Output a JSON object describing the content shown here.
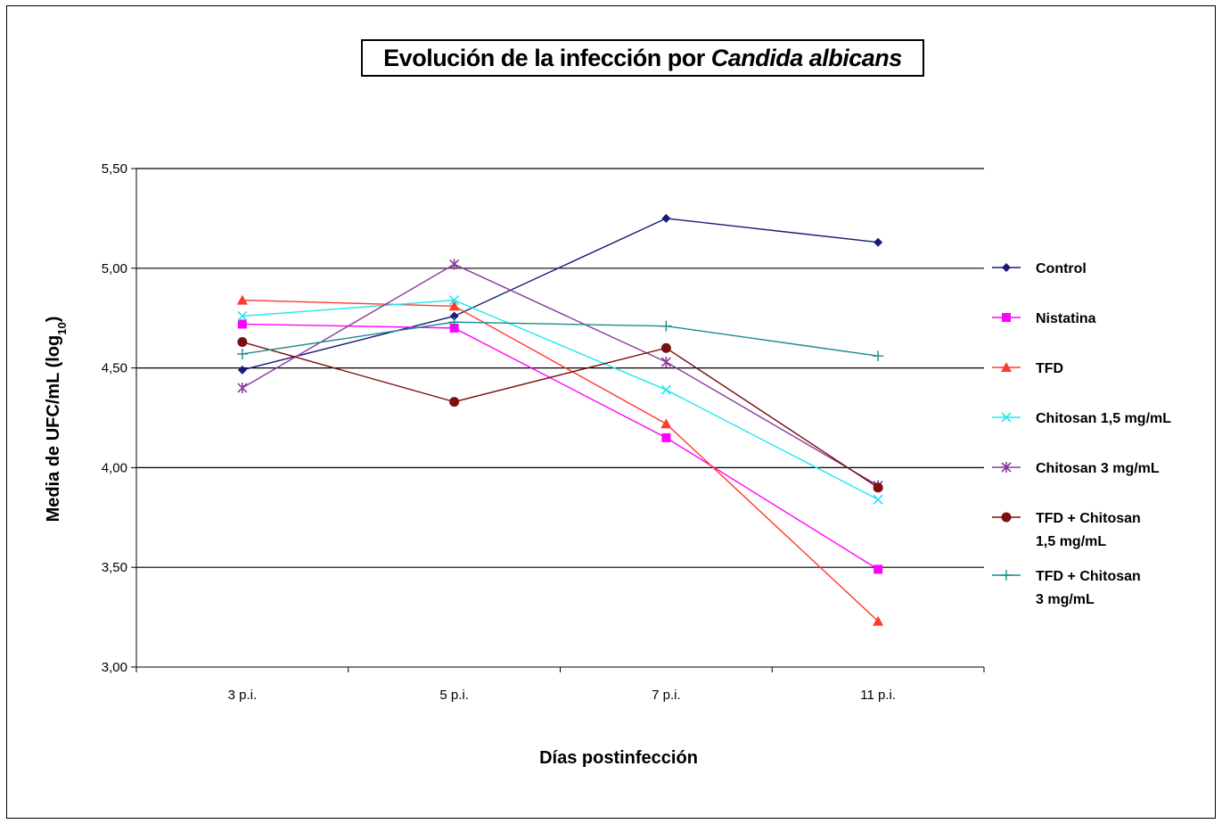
{
  "chart_data": {
    "type": "line",
    "title_prefix": "Evolución de la infección por ",
    "title_italic": "Candida albicans",
    "xlabel": "Días postinfección",
    "ylabel_main": "Media de UFC/mL (log",
    "ylabel_sub": "10",
    "ylabel_end": ")",
    "categories": [
      "3 p.i.",
      "5 p.i.",
      "7 p.i.",
      "11 p.i."
    ],
    "ylim": [
      3.0,
      5.5
    ],
    "yticks": [
      "3,00",
      "3,50",
      "4,00",
      "4,50",
      "5,00",
      "5,50"
    ],
    "grid": true,
    "legend_position": "right",
    "series": [
      {
        "name": "Control",
        "marker": "diamond",
        "color": "#1a1a7a",
        "values": [
          4.49,
          4.76,
          5.25,
          5.13
        ]
      },
      {
        "name": "Nistatina",
        "marker": "square",
        "color": "#ff00ff",
        "values": [
          4.72,
          4.7,
          4.15,
          3.49
        ]
      },
      {
        "name": "TFD",
        "marker": "triangle",
        "color": "#ff3b2f",
        "values": [
          4.84,
          4.81,
          4.22,
          3.23
        ]
      },
      {
        "name": "Chitosan 1,5 mg/mL",
        "marker": "x",
        "color": "#22e6f0",
        "values": [
          4.76,
          4.84,
          4.39,
          3.84
        ]
      },
      {
        "name": "Chitosan 3 mg/mL",
        "marker": "star",
        "color": "#8a3a9a",
        "values": [
          4.4,
          5.02,
          4.53,
          3.91
        ]
      },
      {
        "name": "TFD + Chitosan 1,5 mg/mL",
        "name_lines": [
          "TFD + Chitosan",
          "1,5 mg/mL"
        ],
        "marker": "circle",
        "color": "#7a1010",
        "values": [
          4.63,
          4.33,
          4.6,
          3.9
        ]
      },
      {
        "name": "TFD + Chitosan 3 mg/mL",
        "name_lines": [
          "TFD + Chitosan",
          "3 mg/mL"
        ],
        "marker": "plus",
        "color": "#1a8a8a",
        "values": [
          4.57,
          4.73,
          4.71,
          4.56
        ]
      }
    ]
  }
}
